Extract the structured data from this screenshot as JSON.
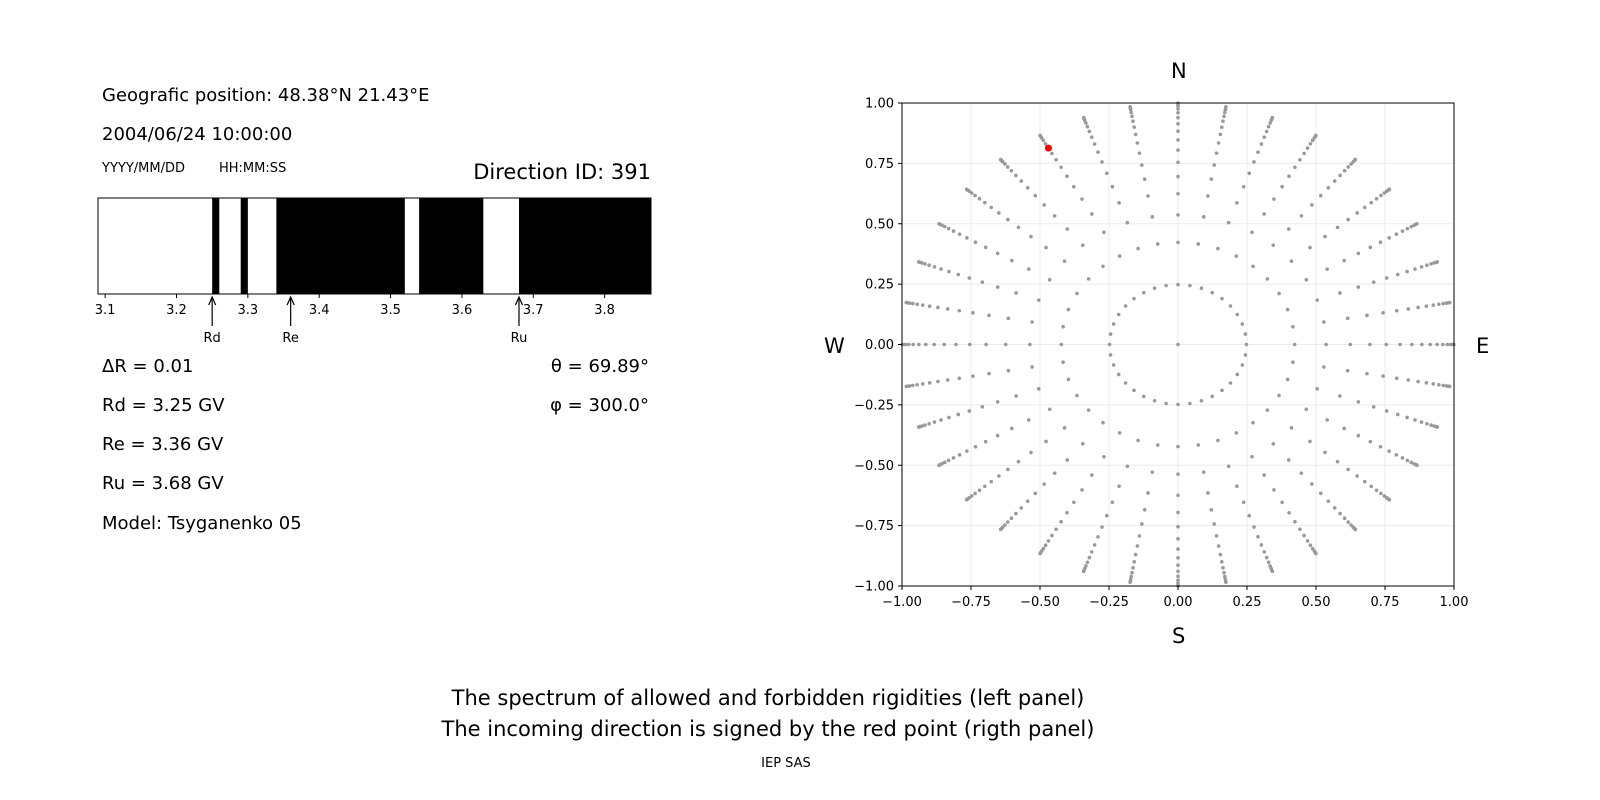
{
  "info": {
    "position": "Geografic position: 48.38°N 21.43°E",
    "datetime": "2004/06/24 10:00:00",
    "date_format": "YYYY/MM/DD",
    "time_format": "HH:MM:SS",
    "direction_id": "Direction ID: 391",
    "delta_r": "ΔR = 0.01",
    "rd": "Rd = 3.25 GV",
    "re": "Re = 3.36 GV",
    "ru": "Ru = 3.68 GV",
    "model": "Model: Tsyganenko 05",
    "theta": "θ = 69.89°",
    "phi": "φ = 300.0°"
  },
  "footer": {
    "line1": "The spectrum of allowed and forbidden rigidities (left panel)",
    "line2": "The incoming direction is signed by the red point (rigth panel)",
    "credit": "IEP SAS"
  },
  "chart_data": [
    {
      "type": "bar",
      "panel": "rigidity spectrum",
      "xlim": [
        3.09,
        3.865
      ],
      "xticks": [
        3.1,
        3.2,
        3.3,
        3.4,
        3.5,
        3.6,
        3.7,
        3.8
      ],
      "black_intervals": [
        [
          3.25,
          3.26
        ],
        [
          3.29,
          3.3
        ],
        [
          3.34,
          3.52
        ],
        [
          3.54,
          3.63
        ],
        [
          3.68,
          3.865
        ]
      ],
      "colors": {
        "filled": "#000000",
        "empty": "#ffffff"
      },
      "markers": [
        {
          "label": "Rd",
          "value": 3.25
        },
        {
          "label": "Re",
          "value": 3.36
        },
        {
          "label": "Ru",
          "value": 3.68
        }
      ]
    },
    {
      "type": "scatter",
      "panel": "direction map",
      "xlim": [
        -1,
        1
      ],
      "ylim": [
        -1,
        1
      ],
      "ticks": [
        -1.0,
        -0.75,
        -0.5,
        -0.25,
        0.0,
        0.25,
        0.5,
        0.75,
        1.0
      ],
      "grid": true,
      "compass": {
        "top": "N",
        "bottom": "S",
        "left": "W",
        "right": "E"
      },
      "grid_points": {
        "azimuths_deg": [
          0,
          10,
          20,
          30,
          40,
          50,
          60,
          70,
          80,
          90,
          100,
          110,
          120,
          130,
          140,
          150,
          160,
          170,
          180,
          190,
          200,
          210,
          220,
          230,
          240,
          250,
          260,
          270,
          280,
          290,
          300,
          310,
          320,
          330,
          340,
          350
        ],
        "cos_zenith": [
          0.96875,
          0.90625,
          0.84375,
          0.78125,
          0.71875,
          0.65625,
          0.59375,
          0.53125,
          0.46875,
          0.40625,
          0.34375,
          0.28125,
          0.21875,
          0.15625,
          0.09375,
          0.03125
        ],
        "center_point": true,
        "color": "#999999"
      },
      "highlight": {
        "theta_deg": 69.89,
        "phi_deg": 300.0,
        "color": "#ff0000"
      }
    }
  ]
}
